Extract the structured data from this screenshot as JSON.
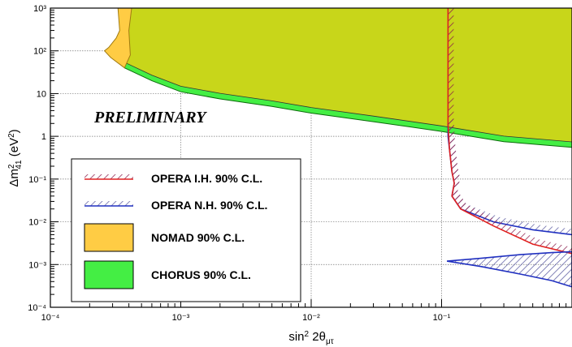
{
  "chart_data": {
    "type": "area",
    "x_scale": "log",
    "y_scale": "log",
    "xlim": [
      0.0001,
      1
    ],
    "ylim": [
      0.0001,
      1000
    ],
    "xlabel": "sin² 2θμτ",
    "ylabel": "Δm²41 (eV²)",
    "x_tick_labels": [
      "10⁻⁴",
      "10⁻³",
      "10⁻²",
      "10⁻¹"
    ],
    "y_tick_labels": [
      "10⁻⁴",
      "10⁻³",
      "10⁻²",
      "10⁻¹",
      "1",
      "10",
      "10²",
      "10³"
    ],
    "grid": true,
    "annotation": "PRELIMINARY",
    "legend_position": "lower-left",
    "series": [
      {
        "name": "OPERA I.H. 90% C.L.",
        "style": "hatched-line",
        "color": "#e02020",
        "hatch_color": "#8b1a4a",
        "x": [
          0.112,
          0.112,
          0.112,
          0.115,
          0.12,
          0.125,
          0.12,
          0.14,
          0.25,
          0.5,
          1.0
        ],
        "y": [
          1000,
          100,
          2,
          0.5,
          0.15,
          0.08,
          0.04,
          0.02,
          0.008,
          0.003,
          0.0018
        ]
      },
      {
        "name": "OPERA N.H. 90% C.L.",
        "style": "hatched-line",
        "color": "#2030c0",
        "hatch_color": "#5a5aa0",
        "x": [
          0.112,
          0.112,
          0.115,
          0.12,
          0.125,
          0.12,
          0.14,
          0.25,
          0.5,
          1.0
        ],
        "y": [
          2,
          1,
          0.5,
          0.15,
          0.08,
          0.04,
          0.02,
          0.01,
          0.0065,
          0.005
        ],
        "x_lower": [
          0.11,
          0.2,
          0.4,
          0.7,
          1.0
        ],
        "y_lower": [
          0.0012,
          0.0009,
          0.0006,
          0.00042,
          0.0003
        ],
        "x_upper": [
          0.11,
          0.2,
          0.4,
          0.7,
          1.0
        ],
        "y_upper": [
          0.0012,
          0.0014,
          0.0017,
          0.0019,
          0.002
        ]
      },
      {
        "name": "NOMAD 90% C.L.",
        "style": "filled",
        "color": "#ffcc44",
        "x": [
          0.00033,
          0.00034,
          0.00032,
          0.00028,
          0.00026,
          0.00029,
          0.00037,
          0.00041,
          0.0004,
          0.00042
        ],
        "y": [
          1000,
          300,
          200,
          120,
          100,
          70,
          40,
          80,
          300,
          1000
        ]
      },
      {
        "name": "CHORUS 90% C.L.",
        "style": "filled",
        "color": "#44ee44",
        "x": [
          0.00037,
          0.0006,
          0.001,
          0.002,
          0.005,
          0.01,
          0.03,
          0.1,
          0.3,
          1.0
        ],
        "y": [
          40,
          20,
          11,
          7.5,
          5.0,
          3.5,
          2.2,
          1.3,
          0.75,
          0.55
        ]
      }
    ],
    "overlap_color": "#c8d61a",
    "frame_color": "#000000"
  }
}
